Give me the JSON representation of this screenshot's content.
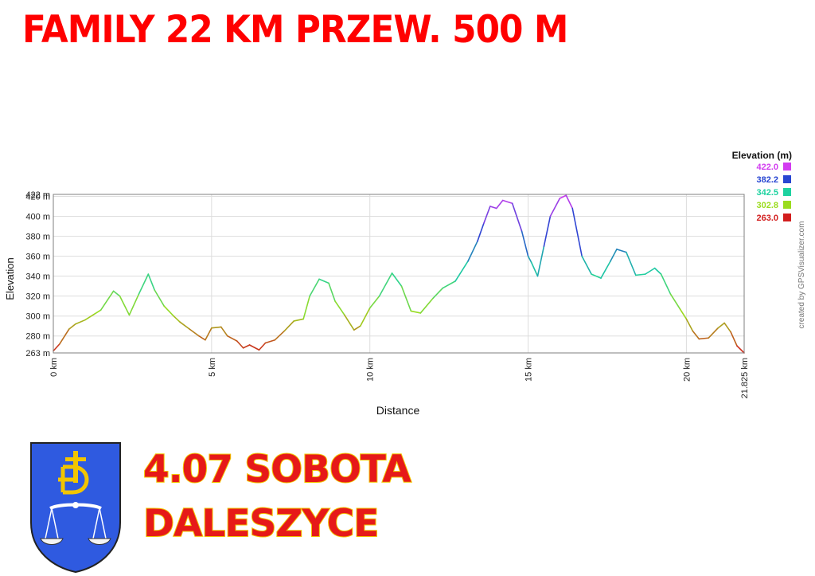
{
  "header": {
    "title": "FAMILY 22 KM PRZEW. 500 M"
  },
  "event": {
    "date_line": "4.07 SOBOTA",
    "place_line": "DALESZYCE"
  },
  "colors": {
    "headline": "#ff0000",
    "bottom_text": "#e61919",
    "bottom_outline": "#f2c500",
    "coat_blue": "#2f5ae0",
    "coat_gold": "#f2c500"
  },
  "icons": {
    "coat_of_arms": "coat-of-arms-icon"
  },
  "chart_data": {
    "type": "line",
    "xlabel": "Distance",
    "ylabel": "Elevation",
    "credit": "created by GPSVisualizer.com",
    "xlim": [
      0,
      21.825
    ],
    "ylim": [
      263,
      422
    ],
    "x_ticks": [
      0,
      5,
      10,
      15,
      20,
      21.825
    ],
    "x_tick_labels": [
      "0 km",
      "5 km",
      "10 km",
      "15 km",
      "20 km",
      "21.825 km"
    ],
    "y_ticks": [
      263,
      280,
      300,
      320,
      340,
      360,
      380,
      400,
      420,
      422
    ],
    "y_tick_labels": [
      "263 m",
      "280 m",
      "300 m",
      "320 m",
      "340 m",
      "360 m",
      "380 m",
      "400 m",
      "420 m",
      "422 m"
    ],
    "grid": true,
    "legend": {
      "title": "Elevation (m)",
      "position": "top-right",
      "entries": [
        {
          "label": "422.0",
          "color": "#d23cf0"
        },
        {
          "label": "382.2",
          "color": "#2846d2"
        },
        {
          "label": "342.5",
          "color": "#1ed2a0"
        },
        {
          "label": "302.8",
          "color": "#9bdc1e"
        },
        {
          "label": "263.0",
          "color": "#d21e1e"
        }
      ]
    },
    "series": [
      {
        "x": [
          0,
          0.2,
          0.5,
          0.7,
          1.0,
          1.3,
          1.5,
          1.9,
          2.1,
          2.4,
          2.7,
          3.0,
          3.2,
          3.5,
          3.8,
          4.0,
          4.3,
          4.6,
          4.8,
          5.0,
          5.3,
          5.5,
          5.8,
          6.0,
          6.2,
          6.5,
          6.7,
          7.0,
          7.3,
          7.6,
          7.9,
          8.1,
          8.4,
          8.7,
          8.9,
          9.2,
          9.5,
          9.7,
          10.0,
          10.3,
          10.7,
          11.0,
          11.3,
          11.6,
          12.0,
          12.3,
          12.7,
          13.1,
          13.4,
          13.6,
          13.8,
          14.0,
          14.2,
          14.5,
          14.8,
          15.0,
          15.1,
          15.3,
          15.5,
          15.7,
          16.0,
          16.2,
          16.4,
          16.7,
          17.0,
          17.3,
          17.6,
          17.8,
          18.1,
          18.4,
          18.7,
          19.0,
          19.2,
          19.5,
          19.8,
          20.0,
          20.2,
          20.4,
          20.7,
          21.0,
          21.2,
          21.4,
          21.6,
          21.825
        ],
        "y": [
          265,
          272,
          287,
          292,
          296,
          302,
          306,
          325,
          320,
          301,
          322,
          342,
          326,
          310,
          300,
          294,
          287,
          280,
          276,
          288,
          289,
          280,
          275,
          268,
          271,
          266,
          273,
          276,
          285,
          295,
          297,
          320,
          337,
          333,
          315,
          301,
          286,
          290,
          308,
          320,
          343,
          330,
          305,
          303,
          318,
          328,
          335,
          355,
          375,
          393,
          410,
          408,
          416,
          413,
          385,
          360,
          354,
          340,
          370,
          400,
          418,
          421,
          408,
          360,
          342,
          338,
          355,
          367,
          364,
          341,
          342,
          348,
          342,
          322,
          307,
          297,
          285,
          277,
          278,
          288,
          293,
          284,
          270,
          263
        ]
      }
    ]
  }
}
